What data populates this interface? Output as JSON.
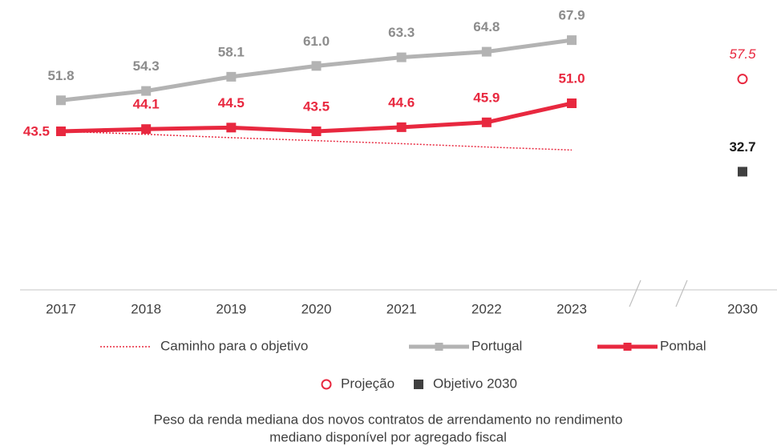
{
  "chart_data": {
    "type": "line",
    "categories": [
      "2017",
      "2018",
      "2019",
      "2020",
      "2021",
      "2022",
      "2023",
      "2030"
    ],
    "series": [
      {
        "name": "Caminho para o objetivo",
        "color": "#e8283f",
        "style": "dotted",
        "values": [
          43.5,
          42.7,
          41.8,
          41.0,
          40.2,
          39.3,
          38.5,
          null
        ]
      },
      {
        "name": "Portugal",
        "color": "#b3b3b3",
        "style": "line",
        "marker": "square",
        "values": [
          51.8,
          54.3,
          58.1,
          61.0,
          63.3,
          64.8,
          67.9,
          null
        ],
        "value_labels": [
          "51.8",
          "54.3",
          "58.1",
          "61.0",
          "63.3",
          "64.8",
          "67.9",
          null
        ]
      },
      {
        "name": "Pombal",
        "color": "#e8283f",
        "style": "line",
        "marker": "square",
        "values": [
          43.5,
          44.1,
          44.5,
          43.5,
          44.6,
          45.9,
          51.0,
          null
        ],
        "value_labels": [
          "43.5",
          "44.1",
          "44.5",
          "43.5",
          "44.6",
          "45.9",
          "51.0",
          null
        ]
      },
      {
        "name": "Projeção",
        "color": "#e8283f",
        "style": "point",
        "marker": "circle",
        "values": [
          null,
          null,
          null,
          null,
          null,
          null,
          null,
          57.5
        ],
        "value_labels": [
          null,
          null,
          null,
          null,
          null,
          null,
          null,
          "57.5"
        ]
      },
      {
        "name": "Objetivo 2030",
        "color": "#404040",
        "style": "point",
        "marker": "square",
        "values": [
          null,
          null,
          null,
          null,
          null,
          null,
          null,
          32.7
        ],
        "value_labels": [
          null,
          null,
          null,
          null,
          null,
          null,
          null,
          "32.7"
        ]
      }
    ],
    "ylim": [
      0,
      72
    ],
    "caption": [
      "Peso da renda mediana dos novos contratos de arrendamento no rendimento",
      "mediano disponível por agregado fiscal"
    ]
  }
}
